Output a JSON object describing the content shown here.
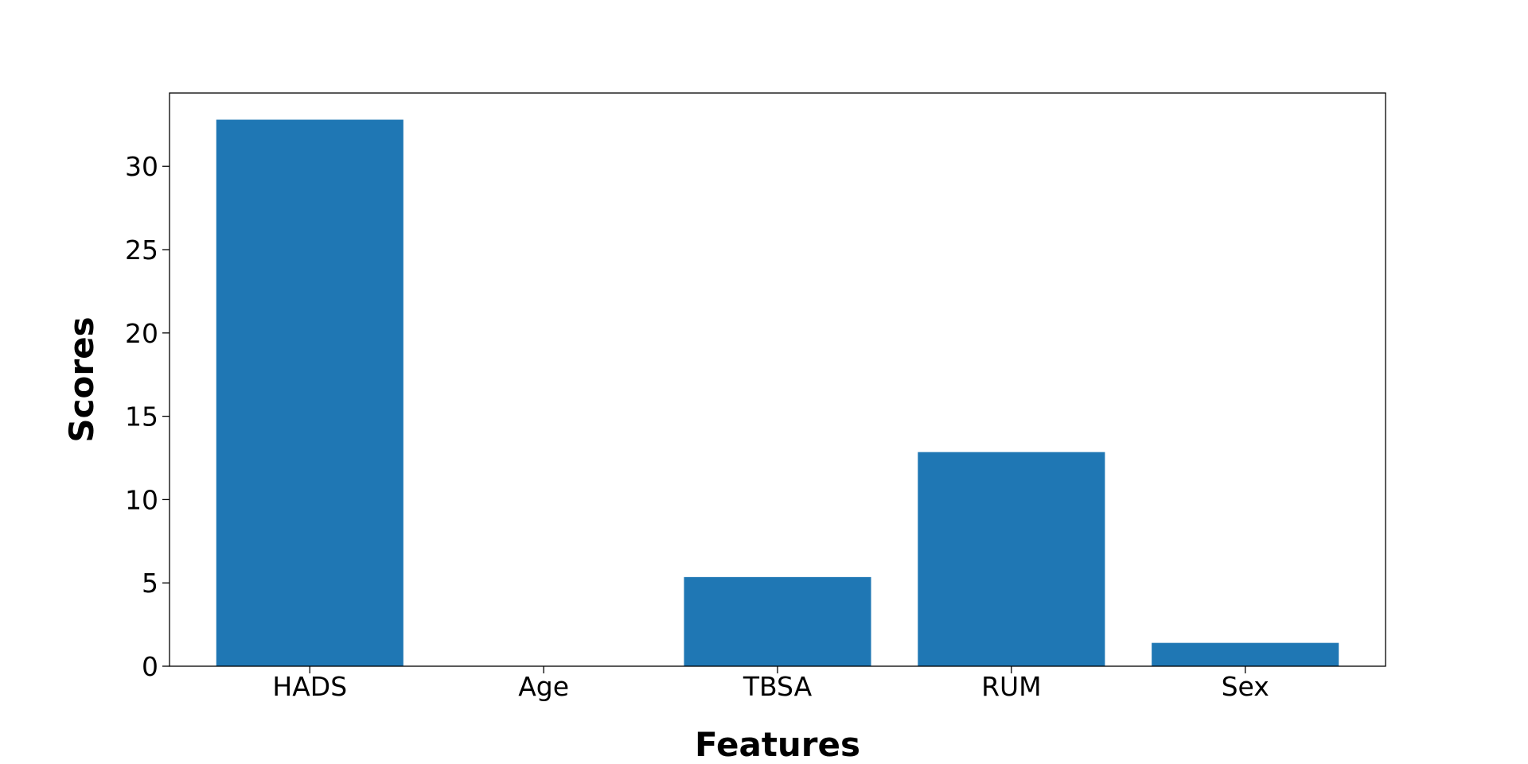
{
  "chart_data": {
    "type": "bar",
    "title": "",
    "xlabel": "Features",
    "ylabel": "Scores",
    "categories": [
      "HADS",
      "Age",
      "TBSA",
      "RUM",
      "Sex"
    ],
    "values": [
      32.8,
      0.0,
      5.35,
      12.85,
      1.4
    ],
    "ylim": [
      0,
      34.4
    ],
    "yticks": [
      0,
      5,
      10,
      15,
      20,
      25,
      30
    ],
    "ytick_labels": [
      "0",
      "5",
      "10",
      "15",
      "20",
      "25",
      "30"
    ],
    "grid": false,
    "legend": "none",
    "bar_color": "#1f77b4"
  }
}
